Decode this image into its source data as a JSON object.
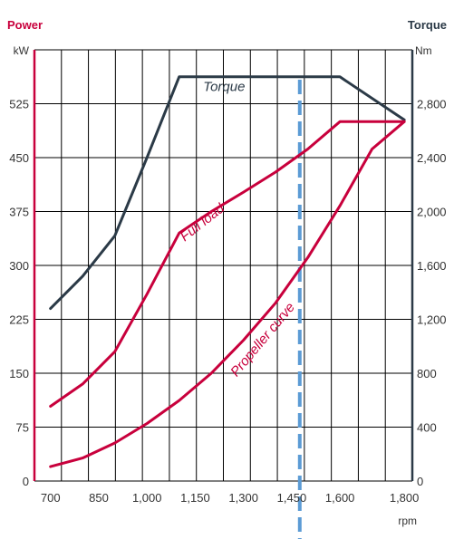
{
  "chart_data": {
    "type": "line",
    "left_axis_title": "Power",
    "right_axis_title": "Torque",
    "left_unit": "kW",
    "right_unit": "Nm",
    "x_unit": "rpm",
    "x_ticks": [
      700,
      850,
      1000,
      1150,
      1300,
      1450,
      1600,
      1800
    ],
    "x_tick_labels": [
      "700",
      "850",
      "1,000",
      "1,150",
      "1,300",
      "1,450",
      "1,600",
      "1,800"
    ],
    "y_left_ticks": [
      0,
      75,
      150,
      225,
      300,
      375,
      450,
      525
    ],
    "y_left_tick_labels": [
      "0",
      "75",
      "150",
      "225",
      "300",
      "375",
      "450",
      "525"
    ],
    "y_right_ticks": [
      0,
      400,
      800,
      1200,
      1600,
      2000,
      2400,
      2800
    ],
    "y_right_tick_labels": [
      "0",
      "400",
      "800",
      "1,200",
      "1,600",
      "2,000",
      "2,400",
      "2,800"
    ],
    "y_left_range": [
      0,
      600
    ],
    "y_right_range": [
      0,
      3200
    ],
    "grid": true,
    "series": [
      {
        "name": "Torque",
        "axis": "right",
        "color": "#2b3a47",
        "points": [
          [
            700,
            1280
          ],
          [
            800,
            1520
          ],
          [
            900,
            1820
          ],
          [
            1000,
            2400
          ],
          [
            1100,
            3000
          ],
          [
            1500,
            3000
          ],
          [
            1600,
            3000
          ],
          [
            1800,
            2680
          ]
        ]
      },
      {
        "name": "Full load",
        "axis": "left",
        "color": "#c8003c",
        "points": [
          [
            700,
            104
          ],
          [
            800,
            135
          ],
          [
            900,
            180
          ],
          [
            1000,
            260
          ],
          [
            1100,
            345
          ],
          [
            1200,
            375
          ],
          [
            1300,
            402
          ],
          [
            1400,
            430
          ],
          [
            1500,
            462
          ],
          [
            1600,
            500
          ],
          [
            1800,
            500
          ]
        ]
      },
      {
        "name": "Propeller curve",
        "axis": "left",
        "color": "#c8003c",
        "points": [
          [
            700,
            20
          ],
          [
            800,
            32
          ],
          [
            900,
            53
          ],
          [
            1000,
            80
          ],
          [
            1100,
            112
          ],
          [
            1200,
            150
          ],
          [
            1300,
            196
          ],
          [
            1400,
            248
          ],
          [
            1500,
            311
          ],
          [
            1600,
            383
          ],
          [
            1700,
            462
          ],
          [
            1800,
            500
          ]
        ]
      }
    ],
    "markers": [
      {
        "x": 1475,
        "style": "dashed",
        "color": "#5b9bd5"
      }
    ]
  }
}
